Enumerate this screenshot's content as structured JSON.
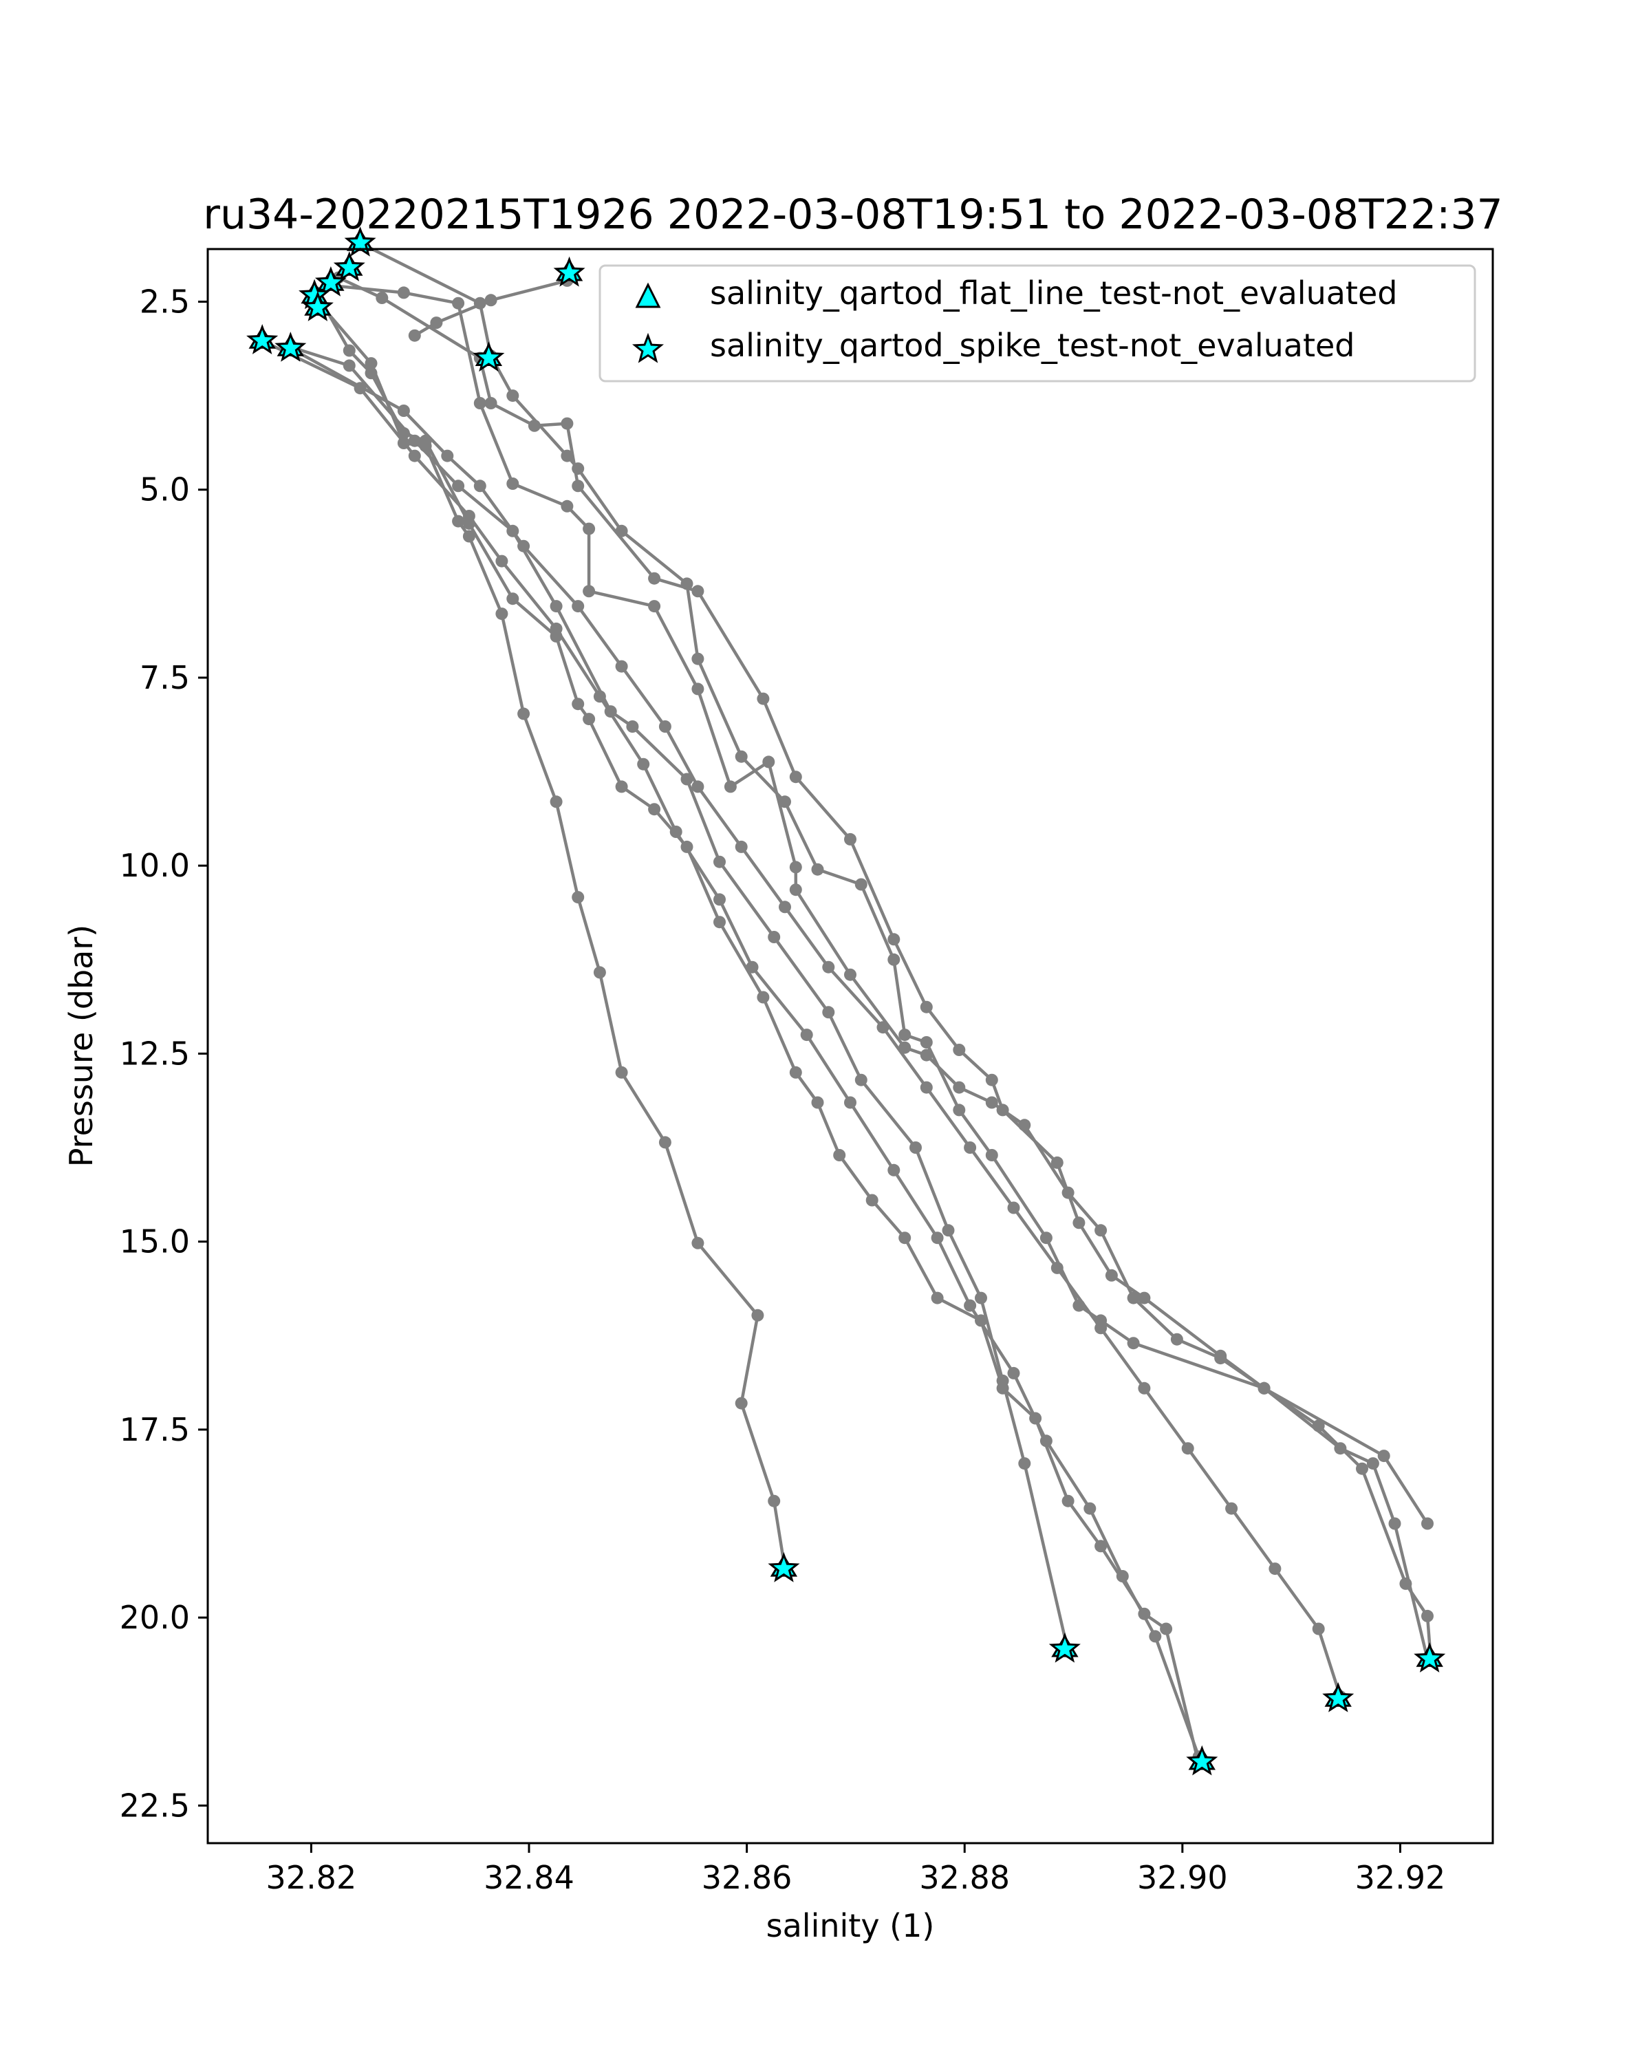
{
  "chart_data": {
    "type": "line",
    "title": "ru34-20220215T1926 2022-03-08T19:51 to 2022-03-08T22:37",
    "xlabel": "salinity (1)",
    "ylabel": "Pressure (dbar)",
    "xlim": [
      32.8105,
      32.9285
    ],
    "ylim": [
      23.0,
      1.8
    ],
    "y_inverted": true,
    "grid": false,
    "legend_location": "upper right",
    "xticks": [
      "32.82",
      "32.84",
      "32.86",
      "32.88",
      "32.90",
      "32.92"
    ],
    "yticks": [
      "2.5",
      "5.0",
      "7.5",
      "10.0",
      "12.5",
      "15.0",
      "17.5",
      "20.0",
      "22.5"
    ],
    "line_color": "#808080",
    "marker_color": "#00FFFF",
    "legend": [
      {
        "label": "salinity_qartod_flat_line_test-not_evaluated",
        "marker": "triangle"
      },
      {
        "label": "salinity_qartod_spike_test-not_evaluated",
        "marker": "star"
      }
    ],
    "series": [
      {
        "x": [
          32.8635,
          32.8625,
          32.8595,
          32.861,
          32.8555,
          32.8525,
          32.8485,
          32.8465,
          32.8445,
          32.8425,
          32.8395,
          32.8375,
          32.8345,
          32.8335,
          32.8305,
          32.8285,
          32.8255,
          32.8205
        ],
        "y": [
          19.35,
          18.45,
          17.15,
          15.98,
          15.02,
          13.68,
          12.75,
          11.42,
          10.42,
          9.15,
          7.98,
          6.65,
          5.62,
          5.42,
          4.42,
          4.38,
          3.32,
          2.48
        ]
      },
      {
        "x": [
          32.8215,
          32.8285,
          32.8335,
          32.8355,
          32.8385,
          32.8435,
          32.8455,
          32.8455,
          32.8515,
          32.8555,
          32.8585,
          32.862,
          32.8645,
          32.8645,
          32.8695,
          32.8745,
          32.8765,
          32.8795,
          32.8825,
          32.8855,
          32.8895,
          32.8925,
          32.8955,
          32.8995,
          32.9035,
          32.9075,
          32.9125,
          32.9165,
          32.9205,
          32.9225,
          32.9228
        ],
        "y": [
          2.28,
          2.38,
          2.52,
          3.85,
          4.92,
          5.22,
          5.52,
          6.35,
          6.55,
          7.65,
          8.95,
          8.62,
          10.02,
          10.32,
          11.45,
          12.42,
          12.52,
          12.95,
          13.15,
          13.45,
          14.35,
          14.85,
          15.75,
          16.3,
          16.55,
          16.95,
          17.45,
          18.02,
          19.55,
          19.98,
          20.55
        ]
      },
      {
        "x": [
          32.8225,
          32.8265,
          32.8355,
          32.8365,
          32.8405,
          32.8435,
          32.8445,
          32.8515,
          32.8555,
          32.8615,
          32.8645,
          32.8695,
          32.8735,
          32.8765,
          32.8795,
          32.8825,
          32.8835,
          32.8885,
          32.8905,
          32.8935,
          32.8965,
          32.9035,
          32.9075,
          32.9145,
          32.9175,
          32.9195,
          32.9225
        ],
        "y": [
          2.18,
          2.45,
          3.25,
          3.85,
          4.15,
          4.12,
          4.95,
          6.18,
          6.35,
          7.78,
          8.82,
          9.65,
          10.98,
          11.88,
          12.45,
          12.85,
          13.25,
          13.95,
          14.75,
          15.45,
          15.75,
          16.52,
          16.95,
          17.75,
          17.95,
          18.75,
          20.55
        ]
      },
      {
        "x": [
          32.8245,
          32.8355,
          32.8365,
          32.8385,
          32.8435,
          32.8445,
          32.8485,
          32.8545,
          32.8555,
          32.8595,
          32.8635,
          32.8665,
          32.8705,
          32.8735,
          32.8745,
          32.8765,
          32.8795,
          32.8825,
          32.8875,
          32.8905,
          32.8925,
          32.8955,
          32.9075,
          32.9185,
          32.9225
        ],
        "y": [
          1.72,
          2.52,
          3.22,
          3.75,
          4.55,
          4.72,
          5.55,
          6.25,
          7.25,
          8.55,
          9.15,
          10.05,
          10.25,
          11.25,
          12.25,
          12.35,
          13.25,
          13.85,
          14.95,
          15.85,
          16.05,
          16.35,
          16.95,
          17.85,
          18.75
        ]
      },
      {
        "x": [
          32.8205,
          32.8235,
          32.8255,
          32.8285,
          32.8305,
          32.8345,
          32.8385,
          32.8425,
          32.8445,
          32.8455,
          32.8485,
          32.8515,
          32.8545,
          32.8575,
          32.8615,
          32.8645,
          32.8665,
          32.8685,
          32.8715,
          32.8745,
          32.8775,
          32.8815,
          32.8835,
          32.8865,
          32.8895,
          32.8925,
          32.8965,
          32.8985,
          32.9015
        ],
        "y": [
          2.38,
          3.15,
          3.45,
          4.25,
          4.35,
          5.45,
          6.45,
          6.95,
          7.85,
          8.05,
          8.95,
          9.25,
          9.75,
          10.75,
          11.75,
          12.75,
          13.15,
          13.85,
          14.45,
          14.95,
          15.75,
          16.05,
          16.95,
          17.35,
          18.45,
          19.05,
          19.95,
          20.15,
          21.95
        ]
      },
      {
        "x": [
          32.8185,
          32.8235,
          32.8295,
          32.8335,
          32.8385,
          32.8425,
          32.8475,
          32.8495,
          32.8545,
          32.8575,
          32.8625,
          32.8675,
          32.8705,
          32.8755,
          32.8785,
          32.8815,
          32.8835,
          32.8855,
          32.8895
        ],
        "y": [
          3.12,
          3.35,
          4.35,
          4.95,
          5.55,
          6.55,
          7.95,
          8.15,
          8.85,
          9.95,
          10.95,
          11.95,
          12.85,
          13.75,
          14.85,
          15.75,
          16.85,
          17.95,
          20.45
        ]
      },
      {
        "x": [
          32.8155,
          32.8245,
          32.8295,
          32.8345,
          32.8375,
          32.8425,
          32.8465,
          32.8505,
          32.8535,
          32.8575,
          32.8605,
          32.8655,
          32.8695,
          32.8735,
          32.8775,
          32.8805,
          32.8845,
          32.8875,
          32.8915,
          32.8945,
          32.8975,
          32.9015
        ],
        "y": [
          3.02,
          3.65,
          4.55,
          5.35,
          5.95,
          6.85,
          7.75,
          8.65,
          9.55,
          10.45,
          11.35,
          12.25,
          13.15,
          14.05,
          14.95,
          15.85,
          16.75,
          17.65,
          18.55,
          19.45,
          20.25,
          21.85
        ]
      },
      {
        "x": [
          32.8185,
          32.8285,
          32.8325,
          32.8355,
          32.8395,
          32.8445,
          32.8485,
          32.8525,
          32.8555,
          32.8595,
          32.8635,
          32.8675,
          32.8725,
          32.8765,
          32.8805,
          32.8845,
          32.8885,
          32.8925,
          32.8965,
          32.9005,
          32.9045,
          32.9085,
          32.9125,
          32.9145
        ],
        "y": [
          3.15,
          3.95,
          4.55,
          4.95,
          5.75,
          6.55,
          7.35,
          8.15,
          8.95,
          9.75,
          10.55,
          11.35,
          12.15,
          12.95,
          13.75,
          14.55,
          15.35,
          16.15,
          16.95,
          17.75,
          18.55,
          19.35,
          20.15,
          21.05
        ]
      },
      {
        "x": [
          32.8295,
          32.8315,
          32.8365,
          32.8435
        ],
        "y": [
          2.95,
          2.78,
          2.48,
          2.22
        ]
      }
    ],
    "flagged_points": [
      {
        "x": 32.8245,
        "y": 1.72
      },
      {
        "x": 32.8235,
        "y": 2.05
      },
      {
        "x": 32.8218,
        "y": 2.25
      },
      {
        "x": 32.8203,
        "y": 2.42
      },
      {
        "x": 32.8206,
        "y": 2.58
      },
      {
        "x": 32.8155,
        "y": 3.02
      },
      {
        "x": 32.8181,
        "y": 3.12
      },
      {
        "x": 32.8363,
        "y": 3.25
      },
      {
        "x": 32.8437,
        "y": 2.12
      },
      {
        "x": 32.8634,
        "y": 19.35
      },
      {
        "x": 32.8892,
        "y": 20.42
      },
      {
        "x": 32.9018,
        "y": 21.92
      },
      {
        "x": 32.9143,
        "y": 21.08
      },
      {
        "x": 32.9227,
        "y": 20.55
      }
    ]
  }
}
